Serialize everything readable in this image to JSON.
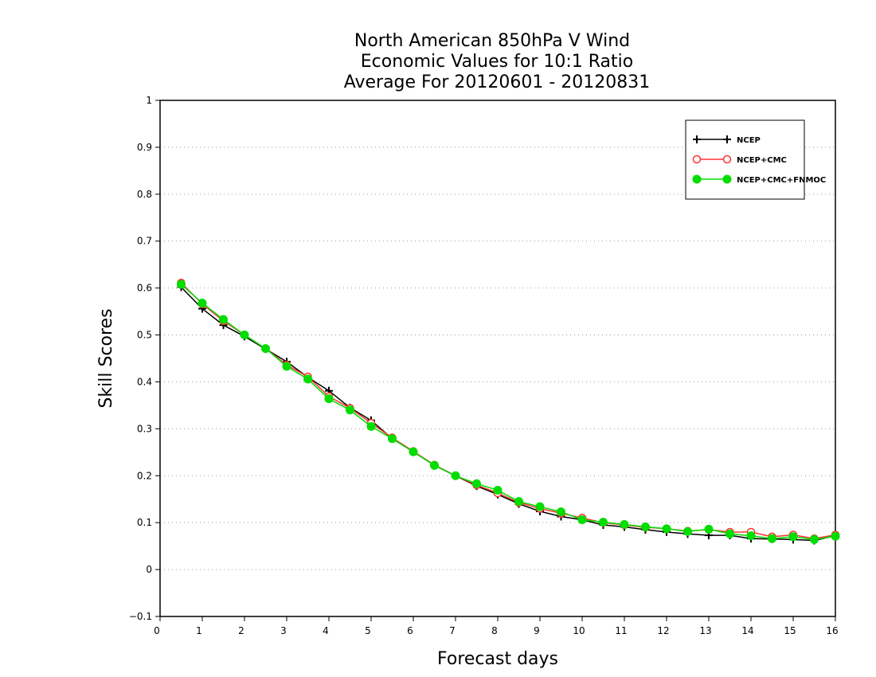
{
  "chart_data": {
    "type": "line",
    "title": [
      "North American 850hPa V Wind",
      "Economic Values for 10:1 Ratio",
      "Average For 20120601 - 20120831"
    ],
    "xlabel": "Forecast days",
    "ylabel": "Skill Scores",
    "xlim": [
      0,
      16
    ],
    "ylim": [
      -0.1,
      1
    ],
    "xticks": [
      "0",
      "1",
      "2",
      "3",
      "4",
      "5",
      "6",
      "7",
      "8",
      "9",
      "10",
      "11",
      "12",
      "13",
      "14",
      "15",
      "16"
    ],
    "yticks": [
      "−0.1",
      "0",
      "0.1",
      "0.2",
      "0.3",
      "0.4",
      "0.5",
      "0.6",
      "0.7",
      "0.8",
      "0.9",
      "1"
    ],
    "grid": "horizontal dotted",
    "legend_position": "top-right",
    "x": [
      0.5,
      1,
      1.5,
      2,
      2.5,
      3,
      3.5,
      4,
      4.5,
      5,
      5.5,
      6,
      6.5,
      7,
      7.5,
      8,
      8.5,
      9,
      9.5,
      10,
      10.5,
      11,
      11.5,
      12,
      12.5,
      13,
      13.5,
      14,
      14.5,
      15,
      15.5,
      16
    ],
    "series": [
      {
        "name": "NCEP",
        "color": "#000000",
        "marker": "plus",
        "values": [
          0.602,
          0.556,
          0.521,
          0.497,
          0.47,
          0.443,
          0.41,
          0.381,
          0.345,
          0.318,
          0.279,
          0.251,
          0.222,
          0.2,
          0.178,
          0.16,
          0.14,
          0.124,
          0.113,
          0.106,
          0.095,
          0.091,
          0.085,
          0.08,
          0.076,
          0.073,
          0.073,
          0.066,
          0.065,
          0.064,
          0.062,
          0.072
        ]
      },
      {
        "name": "NCEP+CMC",
        "color": "#ff3333",
        "marker": "open-circle",
        "values": [
          0.611,
          0.566,
          0.53,
          0.5,
          0.471,
          0.436,
          0.411,
          0.369,
          0.344,
          0.312,
          0.281,
          0.252,
          0.223,
          0.2,
          0.18,
          0.163,
          0.143,
          0.13,
          0.12,
          0.11,
          0.1,
          0.095,
          0.09,
          0.087,
          0.082,
          0.085,
          0.08,
          0.08,
          0.07,
          0.074,
          0.066,
          0.074
        ]
      },
      {
        "name": "NCEP+CMC+FNMOC",
        "color": "#00dd00",
        "marker": "filled-circle",
        "values": [
          0.608,
          0.568,
          0.533,
          0.5,
          0.471,
          0.433,
          0.406,
          0.364,
          0.34,
          0.305,
          0.279,
          0.251,
          0.222,
          0.2,
          0.183,
          0.169,
          0.145,
          0.134,
          0.123,
          0.106,
          0.101,
          0.096,
          0.091,
          0.087,
          0.081,
          0.086,
          0.076,
          0.072,
          0.066,
          0.07,
          0.064,
          0.071
        ]
      }
    ]
  }
}
